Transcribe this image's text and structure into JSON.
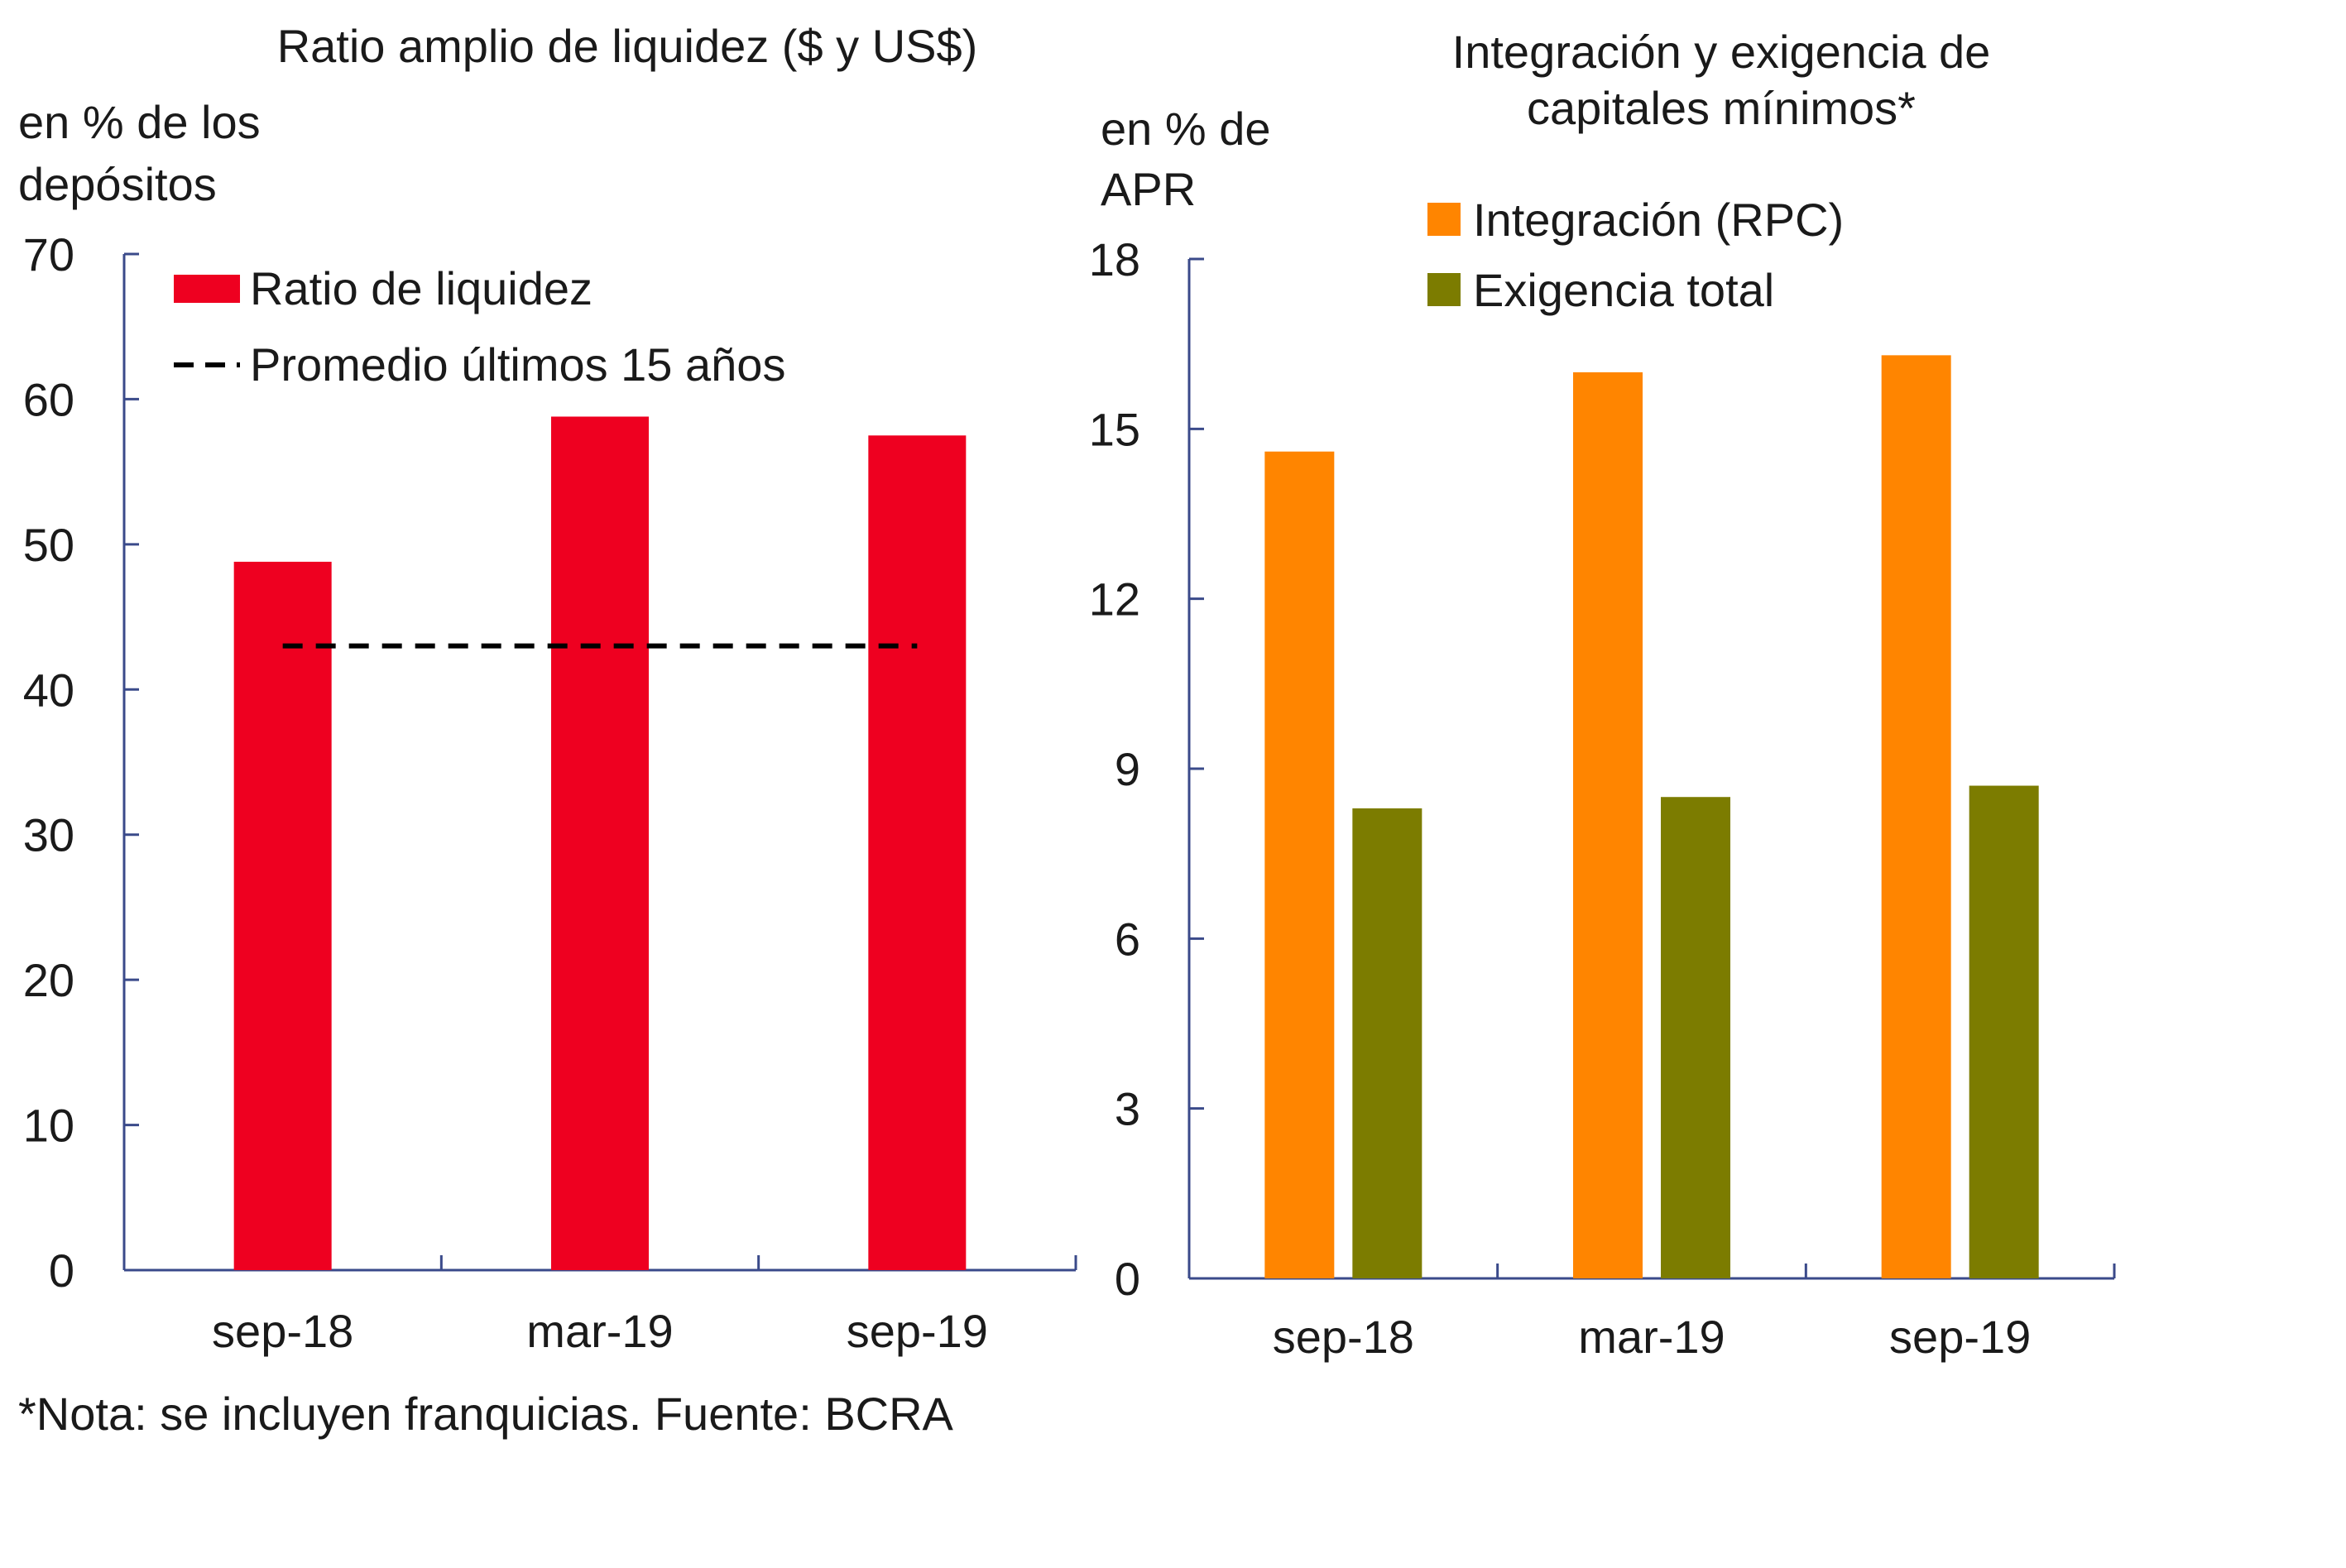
{
  "chart_data": [
    {
      "type": "bar",
      "title": "Ratio amplio de liquidez ($ y US$)",
      "ylabel_lines": [
        "en % de los",
        "depósitos"
      ],
      "xlabel": "",
      "categories": [
        "sep-18",
        "mar-19",
        "sep-19"
      ],
      "ylim": [
        0,
        70
      ],
      "yticks": [
        0,
        10,
        20,
        30,
        40,
        50,
        60,
        70
      ],
      "series": [
        {
          "name": "Ratio de liquidez",
          "values": [
            48.8,
            58.8,
            57.5
          ],
          "color": "#ee0020"
        }
      ],
      "reference_line": {
        "name": "Promedio últimos 15 años",
        "value": 43,
        "style": "dashed",
        "color": "#000000"
      },
      "legend_position": "top-left",
      "grid": false
    },
    {
      "type": "bar",
      "title_lines": [
        "Integración y exigencia de",
        "capitales mínimos*"
      ],
      "ylabel_lines": [
        "en % de",
        "APR"
      ],
      "xlabel": "",
      "categories": [
        "sep-18",
        "mar-19",
        "sep-19"
      ],
      "ylim": [
        0,
        18
      ],
      "yticks": [
        0,
        3,
        6,
        9,
        12,
        15,
        18
      ],
      "series": [
        {
          "name": "Integración (RPC)",
          "values": [
            14.6,
            16.0,
            16.3
          ],
          "color": "#ff8500"
        },
        {
          "name": "Exigencia total",
          "values": [
            8.3,
            8.5,
            8.7
          ],
          "color": "#7c7c00"
        }
      ],
      "legend_position": "top-right",
      "grid": false
    }
  ],
  "footnote": "*Nota: se incluyen franquicias. Fuente: BCRA",
  "colors": {
    "axis": "#3a4a8a"
  }
}
